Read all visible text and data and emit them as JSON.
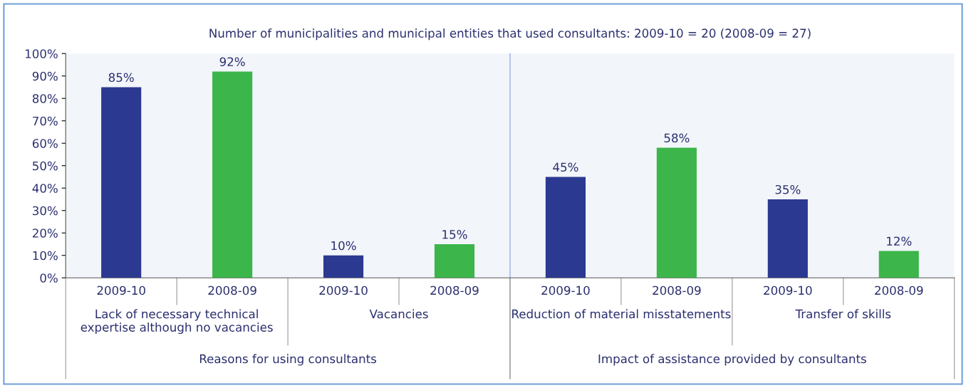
{
  "chart_data": [
    {
      "type": "bar",
      "title": "Number of municipalities and municipal entities that used consultants: 2009-10 = 20 (2008-09 = 27)",
      "categories": [
        "2009-10",
        "2008-09",
        "2009-10",
        "2008-09"
      ],
      "values": [
        85,
        92,
        10,
        15
      ],
      "colors": [
        "#2b3990",
        "#3cb54a",
        "#2b3990",
        "#3cb54a"
      ],
      "value_labels": [
        "85%",
        "92%",
        "10%",
        "15%"
      ],
      "annotations": [
        "Lack of necessary technical\nexpertise although no vacancies",
        "Vacancies",
        "Reasons for using consultants"
      ],
      "ylim": [
        0,
        100
      ],
      "yticks": [
        {
          "value": 0,
          "label": "0%"
        },
        {
          "value": 10,
          "label": "10%"
        },
        {
          "value": 20,
          "label": "20%"
        },
        {
          "value": 30,
          "label": "30%"
        },
        {
          "value": 40,
          "label": "40%"
        },
        {
          "value": 50,
          "label": "50%"
        },
        {
          "value": 60,
          "label": "60%"
        },
        {
          "value": 70,
          "label": "70%"
        },
        {
          "value": 80,
          "label": "80%"
        },
        {
          "value": 90,
          "label": "90%"
        },
        {
          "value": 100,
          "label": "100%"
        }
      ]
    },
    {
      "type": "bar",
      "categories": [
        "2009-10",
        "2008-09",
        "2009-10",
        "2008-09"
      ],
      "values": [
        45,
        58,
        35,
        12
      ],
      "colors": [
        "#2b3990",
        "#3cb54a",
        "#2b3990",
        "#3cb54a"
      ],
      "value_labels": [
        "45%",
        "58%",
        "35%",
        "12%"
      ],
      "annotations": [
        "Reduction of material misstatements",
        "Transfer of skills",
        "Impact of assistance provided by consultants"
      ],
      "ylim": [
        0,
        100
      ],
      "tick_labels": "x"
    }
  ]
}
